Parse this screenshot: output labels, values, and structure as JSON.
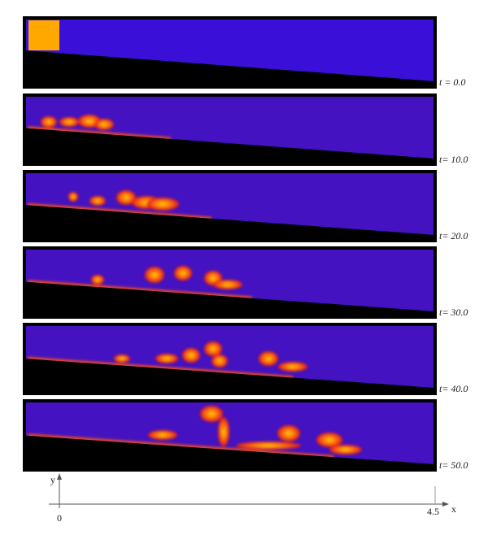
{
  "panels": [
    {
      "label": "t = 0.0"
    },
    {
      "label": "t= 10.0"
    },
    {
      "label": "t= 20.0"
    },
    {
      "label": "t= 30.0"
    },
    {
      "label": "t= 40.0"
    },
    {
      "label": "t= 50.0"
    }
  ],
  "axes": {
    "y_label": "y",
    "x_label": "x",
    "x_start": "0",
    "x_end": "4.5"
  }
}
